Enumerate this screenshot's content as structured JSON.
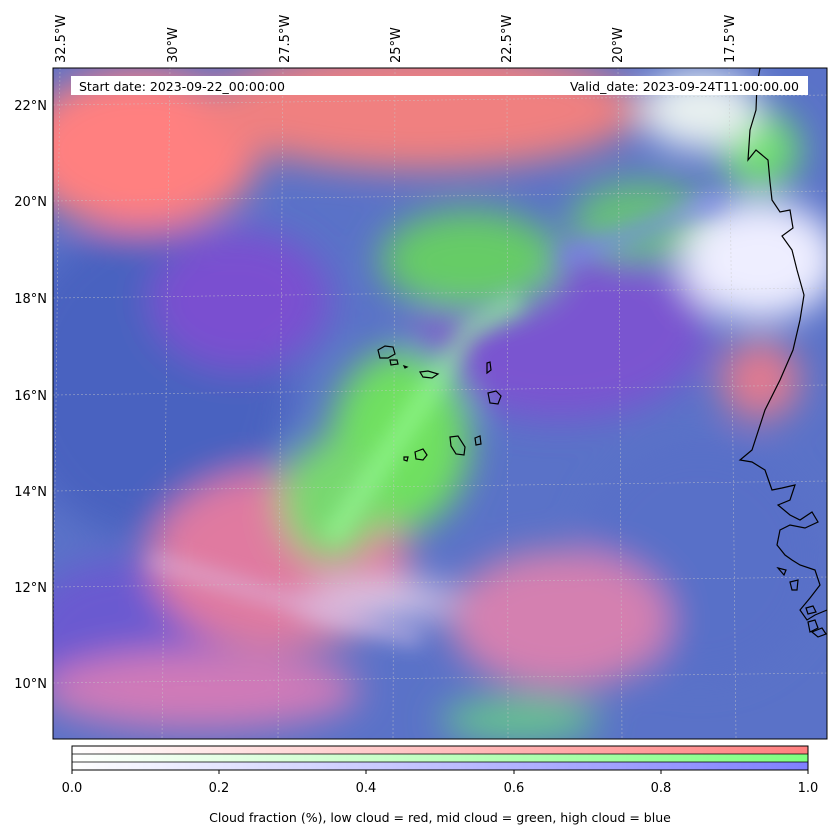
{
  "map": {
    "start_date": "Start date: 2023-09-22_00:00:00",
    "valid_date": "Valid_date: 2023-09-24T11:00:00.00",
    "longitude_labels": [
      "32.5°W",
      "30°W",
      "27.5°W",
      "25°W",
      "22.5°W",
      "20°W",
      "17.5°W"
    ],
    "latitude_labels": [
      "22°N",
      "20°N",
      "18°N",
      "16°N",
      "14°N",
      "12°N",
      "10°N"
    ],
    "gridlines": true,
    "coastline_color": "#000000",
    "layer_colors": {
      "low": "#ff7f7f",
      "mid": "#7fff7f",
      "high": "#7f7fff"
    }
  },
  "colorbar": {
    "tick_labels": [
      "0.0",
      "0.2",
      "0.4",
      "0.6",
      "0.8",
      "1.0"
    ],
    "caption": "Cloud fraction (%), low cloud = red, mid cloud = green, high cloud = blue",
    "rows": [
      {
        "name": "low cloud",
        "color": "#ff7f7f"
      },
      {
        "name": "mid cloud",
        "color": "#7fff7f"
      },
      {
        "name": "high cloud",
        "color": "#7f7fff"
      }
    ]
  }
}
